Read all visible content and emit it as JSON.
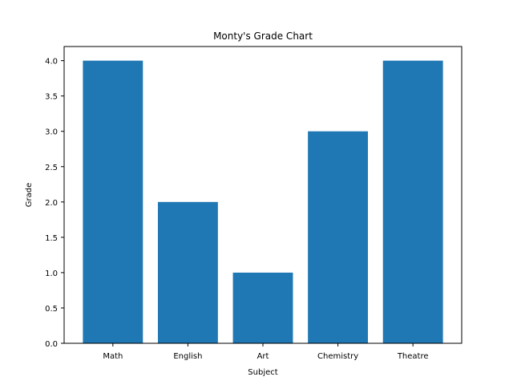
{
  "chart_data": {
    "type": "bar",
    "title": "Monty's Grade Chart",
    "xlabel": "Subject",
    "ylabel": "Grade",
    "categories": [
      "Math",
      "English",
      "Art",
      "Chemistry",
      "Theatre"
    ],
    "values": [
      4.0,
      2.0,
      1.0,
      3.0,
      4.0
    ],
    "ylim": [
      0,
      4.2
    ],
    "yticks": [
      "0.0",
      "0.5",
      "1.0",
      "1.5",
      "2.0",
      "2.5",
      "3.0",
      "3.5",
      "4.0"
    ],
    "bar_color": "#1f77b4",
    "grid": false,
    "legend": "none"
  }
}
